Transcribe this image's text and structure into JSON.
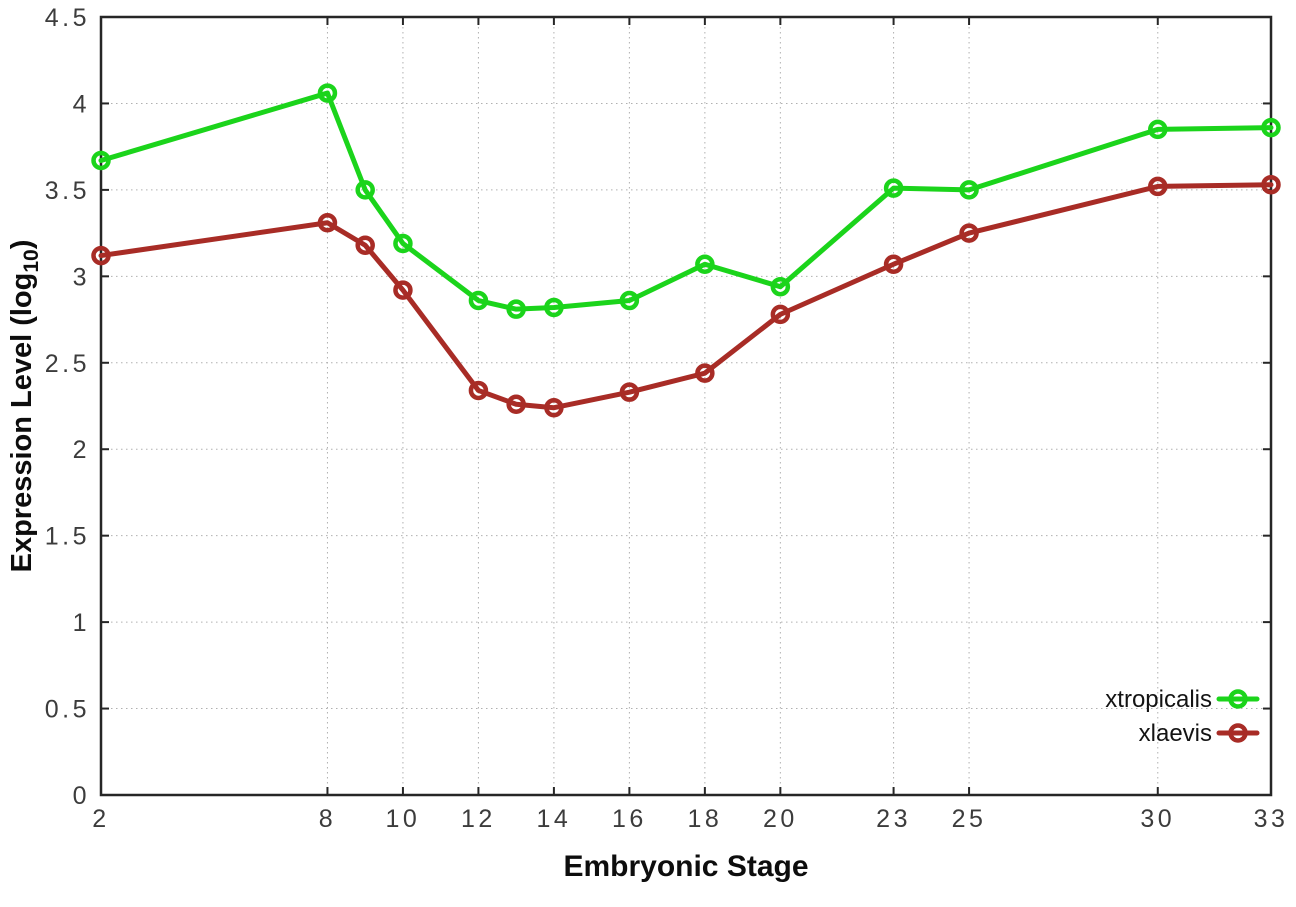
{
  "chart_data": {
    "type": "line",
    "title": "",
    "xlabel": "Embryonic Stage",
    "ylabel_prefix": "Expression Level (log",
    "ylabel_sub": "10",
    "ylabel_suffix": ")",
    "xlim": [
      2,
      33
    ],
    "ylim": [
      0,
      4.5
    ],
    "x_ticks": [
      2,
      8,
      10,
      12,
      14,
      16,
      18,
      20,
      23,
      25,
      30,
      33
    ],
    "y_ticks": [
      0,
      0.5,
      1,
      1.5,
      2,
      2.5,
      3,
      3.5,
      4,
      4.5
    ],
    "grid": true,
    "legend_position": "bottom-right",
    "marker": "open-circle",
    "x": [
      2,
      8,
      9,
      10,
      12,
      13,
      14,
      16,
      18,
      20,
      23,
      25,
      30,
      33
    ],
    "series": [
      {
        "name": "xtropicalis",
        "color": "#1bd41b",
        "values": [
          3.67,
          4.06,
          3.5,
          3.19,
          2.86,
          2.81,
          2.82,
          2.86,
          3.07,
          2.94,
          3.51,
          3.5,
          3.85,
          3.86
        ]
      },
      {
        "name": "xlaevis",
        "color": "#a82c26",
        "values": [
          3.12,
          3.31,
          3.18,
          2.92,
          2.34,
          2.26,
          2.24,
          2.33,
          2.44,
          2.78,
          3.07,
          3.25,
          3.52,
          3.53
        ]
      }
    ]
  },
  "colors": {
    "background": "#ffffff",
    "axis": "#262626",
    "grid": "#b0b0b0",
    "tick_label": "#3c3c3c"
  }
}
